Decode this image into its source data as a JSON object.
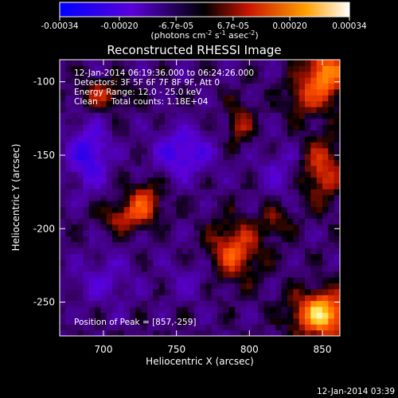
{
  "chart_data": {
    "type": "heatmap",
    "title": "Reconstructed RHESSI Image",
    "xlabel": "Heliocentric X (arcsec)",
    "ylabel": "Heliocentric Y (arcsec)",
    "xlim": [
      670,
      862
    ],
    "ylim": [
      -273,
      -85
    ],
    "xticks": [
      700,
      750,
      800,
      850
    ],
    "yticks": [
      -250,
      -200,
      -150,
      -100
    ],
    "colorbar": {
      "range": [
        -0.00034,
        0.00034
      ],
      "ticks": [
        {
          "value": -0.00034,
          "label": "-0.00034"
        },
        {
          "value": -0.0002,
          "label": "-0.00020"
        },
        {
          "value": -6.7e-05,
          "label": "-6.7e-05"
        },
        {
          "value": 6.7e-05,
          "label": "6.7e-05"
        },
        {
          "value": 0.0002,
          "label": "0.00020"
        },
        {
          "value": 0.00034,
          "label": "0.00034"
        }
      ],
      "label_main": "(photons cm",
      "label_exp1": "-2",
      "label_mid1": " s",
      "label_exp2": "-1",
      "label_mid2": " asec",
      "label_exp3": "-2",
      "label_end": ")"
    },
    "annotations": [
      "12-Jan-2014 06:19:36.000 to 06:24:26.000",
      "Detectors: 3F 5F 6F 7F 8F 9F, Att 0",
      "Energy Range: 12.0 - 25.0 keV",
      "Clean     Total counts: 1.18E+04"
    ],
    "peak_text": "Position of Peak = [857,-259]",
    "footer_date": "12-Jan-2014 03:39",
    "sources": [
      {
        "x": 850,
        "y": -258,
        "value": 0.00034,
        "sx": 14,
        "sy": 11
      },
      {
        "x": 852,
        "y": -95,
        "value": 0.00028,
        "sx": 10,
        "sy": 14
      },
      {
        "x": 850,
        "y": -160,
        "value": 0.00018,
        "sx": 10,
        "sy": 16
      },
      {
        "x": 790,
        "y": -215,
        "value": 0.00021,
        "sx": 12,
        "sy": 14
      },
      {
        "x": 728,
        "y": -182,
        "value": 0.00019,
        "sx": 8,
        "sy": 10
      },
      {
        "x": 712,
        "y": -192,
        "value": 0.00014,
        "sx": 10,
        "sy": 7
      },
      {
        "x": 793,
        "y": -128,
        "value": 0.00014,
        "sx": 6,
        "sy": 10
      },
      {
        "x": 700,
        "y": -108,
        "value": 0.00014,
        "sx": 12,
        "sy": 7
      },
      {
        "x": 835,
        "y": -110,
        "value": 0.00011,
        "sx": 8,
        "sy": 10
      },
      {
        "x": 818,
        "y": -196,
        "value": 0.0001,
        "sx": 8,
        "sy": 8
      },
      {
        "x": 755,
        "y": -148,
        "value": -0.00016,
        "sx": 14,
        "sy": 12
      },
      {
        "x": 690,
        "y": -150,
        "value": -0.00018,
        "sx": 10,
        "sy": 15
      },
      {
        "x": 700,
        "y": -235,
        "value": -9e-05,
        "sx": 14,
        "sy": 12
      },
      {
        "x": 820,
        "y": -160,
        "value": -8e-05,
        "sx": 10,
        "sy": 12
      },
      {
        "x": 760,
        "y": -235,
        "value": -6e-05,
        "sx": 12,
        "sy": 10
      }
    ],
    "pixel_size_arcsec": 4
  }
}
